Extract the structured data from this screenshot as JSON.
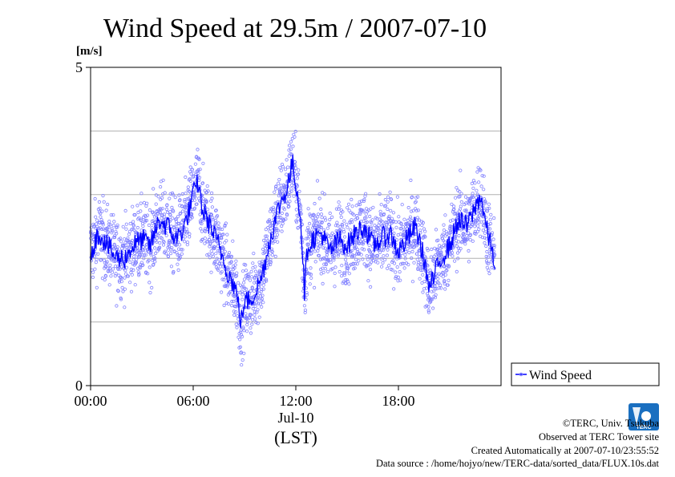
{
  "chart_data": {
    "type": "scatter",
    "title": "Wind Speed at 29.5m / 2007-07-10",
    "ylabel": "[m/s]",
    "ylim": [
      0,
      5
    ],
    "yticks": [
      {
        "value": 0,
        "label": "0"
      },
      {
        "value": 5,
        "label": "5"
      }
    ],
    "ygrid": [
      1,
      2,
      3,
      4
    ],
    "xlim_hours": [
      0,
      24
    ],
    "xticks": [
      {
        "hour": 0,
        "label": "00:00"
      },
      {
        "hour": 6,
        "label": "06:00"
      },
      {
        "hour": 12,
        "label": "12:00"
      },
      {
        "hour": 18,
        "label": "18:00"
      }
    ],
    "date_label": "Jul-10",
    "xlabel": "(LST)",
    "series": [
      {
        "name": "Wind Speed",
        "color": "#0000ff",
        "point_color": "#8080ff",
        "mean_line": [
          [
            0.0,
            2.1
          ],
          [
            0.5,
            2.4
          ],
          [
            1.0,
            2.2
          ],
          [
            1.5,
            2.0
          ],
          [
            2.0,
            2.0
          ],
          [
            2.5,
            2.2
          ],
          [
            3.0,
            2.3
          ],
          [
            3.5,
            2.2
          ],
          [
            4.0,
            2.6
          ],
          [
            4.5,
            2.5
          ],
          [
            5.0,
            2.3
          ],
          [
            5.5,
            2.5
          ],
          [
            6.0,
            3.0
          ],
          [
            6.3,
            3.2
          ],
          [
            6.5,
            2.8
          ],
          [
            7.0,
            2.5
          ],
          [
            7.5,
            2.2
          ],
          [
            8.0,
            1.8
          ],
          [
            8.5,
            1.5
          ],
          [
            8.8,
            1.0
          ],
          [
            9.0,
            1.3
          ],
          [
            9.5,
            1.4
          ],
          [
            10.0,
            1.7
          ],
          [
            10.5,
            2.3
          ],
          [
            11.0,
            2.8
          ],
          [
            11.5,
            3.1
          ],
          [
            11.8,
            3.5
          ],
          [
            12.0,
            3.2
          ],
          [
            12.3,
            2.6
          ],
          [
            12.5,
            1.5
          ],
          [
            12.7,
            2.2
          ],
          [
            13.0,
            2.3
          ],
          [
            13.5,
            2.4
          ],
          [
            14.0,
            2.1
          ],
          [
            14.5,
            2.3
          ],
          [
            15.0,
            2.2
          ],
          [
            15.5,
            2.4
          ],
          [
            16.0,
            2.5
          ],
          [
            16.5,
            2.2
          ],
          [
            17.0,
            2.3
          ],
          [
            17.5,
            2.4
          ],
          [
            18.0,
            2.1
          ],
          [
            18.5,
            2.3
          ],
          [
            19.0,
            2.5
          ],
          [
            19.5,
            2.0
          ],
          [
            19.8,
            1.5
          ],
          [
            20.2,
            1.8
          ],
          [
            20.5,
            2.0
          ],
          [
            21.0,
            2.2
          ],
          [
            21.5,
            2.6
          ],
          [
            22.0,
            2.5
          ],
          [
            22.5,
            2.8
          ],
          [
            22.8,
            3.0
          ],
          [
            23.2,
            2.4
          ],
          [
            23.5,
            2.1
          ],
          [
            23.8,
            1.7
          ]
        ],
        "spread": 0.6
      }
    ],
    "legend": {
      "position": "right",
      "label": "Wind Speed"
    }
  },
  "credits": {
    "copyright": "©TERC, Univ. Tsukuba",
    "observed": "Observed at TERC Tower site",
    "created": "Created Automatically at 2007-07-10/23:55:52",
    "source": "Data source : /home/hojyo/new/TERC-data/sorted_data/FLUX.10s.dat"
  },
  "logo": {
    "text": "TERC",
    "color": "#1a6fc0"
  }
}
